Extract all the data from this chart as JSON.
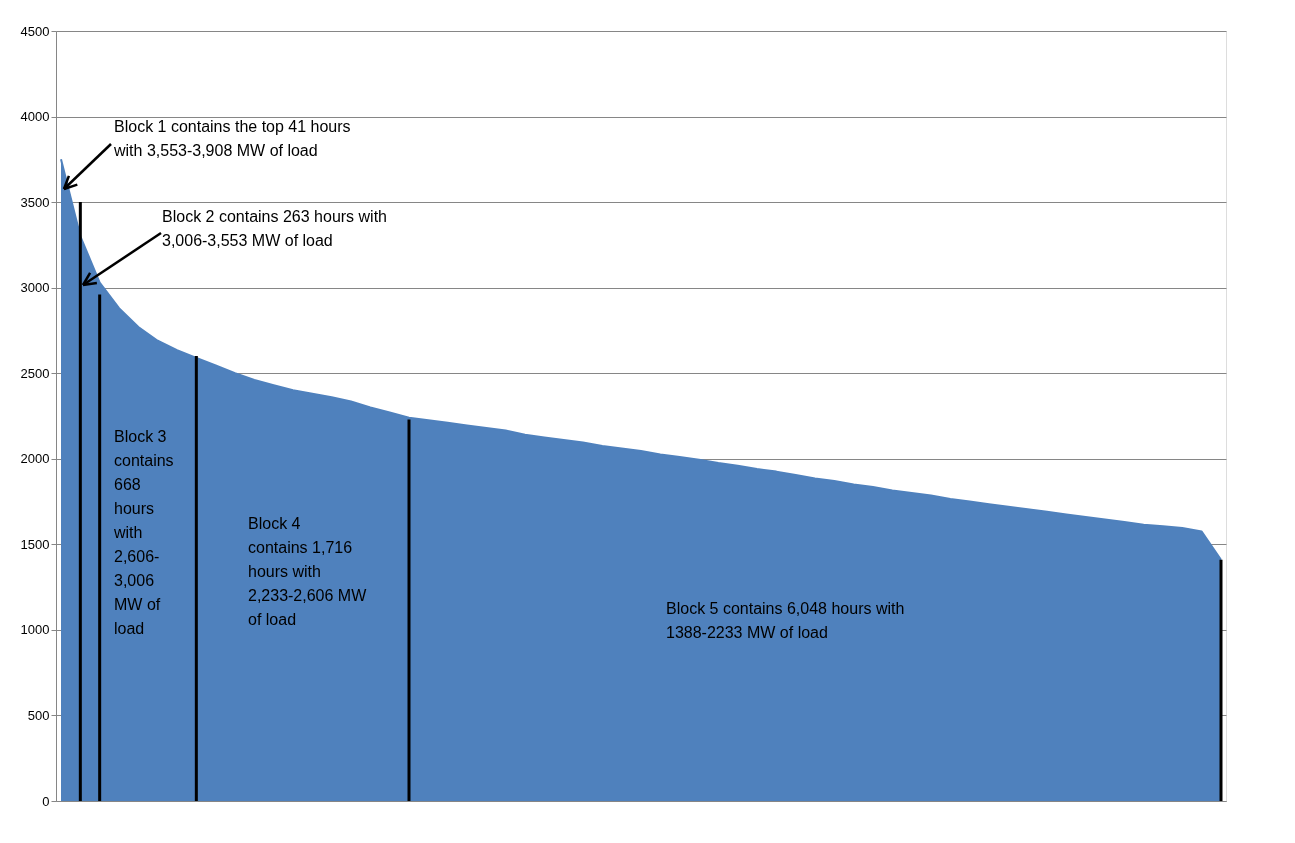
{
  "chart_data": {
    "type": "area",
    "categories": [
      null,
      null,
      null,
      null,
      null,
      null,
      null,
      null,
      null,
      null,
      null,
      null,
      null,
      null,
      null,
      null,
      null,
      null,
      null,
      null,
      null,
      null,
      null,
      null,
      null,
      null,
      null,
      null,
      null,
      null,
      null,
      null,
      null,
      null,
      null,
      null,
      null,
      null,
      null,
      null,
      null,
      null,
      null,
      null,
      null,
      null,
      null,
      null,
      null,
      null,
      null,
      null,
      null,
      null,
      null,
      null,
      null,
      null,
      null,
      null,
      null
    ],
    "series": [
      {
        "color": "#4f81bd",
        "values": [
          3750,
          3300,
          3030,
          2880,
          2770,
          2690,
          2635,
          2590,
          2545,
          2500,
          2460,
          2430,
          2400,
          2380,
          2360,
          2335,
          2300,
          2270,
          2240,
          2225,
          2210,
          2195,
          2180,
          2165,
          2140,
          2125,
          2110,
          2095,
          2075,
          2060,
          2045,
          2025,
          2010,
          1995,
          1975,
          1960,
          1940,
          1925,
          1905,
          1885,
          1870,
          1850,
          1835,
          1815,
          1800,
          1785,
          1765,
          1750,
          1735,
          1720,
          1705,
          1690,
          1675,
          1660,
          1645,
          1630,
          1615,
          1605,
          1595,
          1575,
          1410
        ]
      },
      {
        "type": "bar",
        "color": "#000000",
        "values": [
          null,
          3500,
          2960,
          null,
          null,
          null,
          null,
          2600,
          null,
          null,
          null,
          null,
          null,
          null,
          null,
          null,
          null,
          null,
          2230,
          null,
          null,
          null,
          null,
          null,
          null,
          null,
          null,
          null,
          null,
          null,
          null,
          null,
          null,
          null,
          null,
          null,
          null,
          null,
          null,
          null,
          null,
          null,
          null,
          null,
          null,
          null,
          null,
          null,
          null,
          null,
          null,
          null,
          null,
          null,
          null,
          null,
          null,
          null,
          null,
          null,
          1410
        ]
      }
    ],
    "ylim": [
      0,
      4500
    ],
    "yticks": [
      0,
      500,
      1000,
      1500,
      2000,
      2500,
      3000,
      3500,
      4000,
      4500
    ],
    "grid": "y",
    "tick_labels": "y",
    "annotations": [
      "Block 1 contains the top 41 hours with 3,553-3,908 MW of load",
      "Block 2 contains 263 hours with 3,006-3,553 MW of load",
      "Block 3 contains 668 hours with 2,606-3,006 MW of load",
      "Block 4 contains 1,716 hours with 2,233-2,606 MW of load",
      "Block 5 contains 6,048 hours with 1388-2233 MW of load"
    ]
  }
}
